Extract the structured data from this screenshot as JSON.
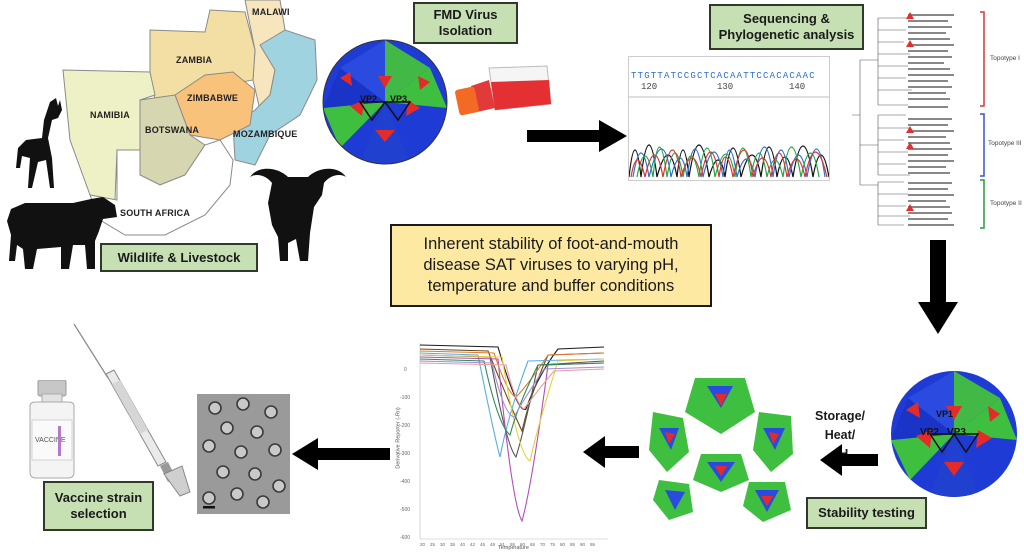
{
  "labels": {
    "wildlife": "Wildlife & Livestock",
    "isolation": "FMD Virus\nIsolation",
    "sequencing": "Sequencing &\nPhylogenetic analysis",
    "main": "Inherent stability of foot-and-mouth disease SAT viruses to varying pH, temperature and buffer conditions",
    "stability": "Stability testing",
    "vaccine": "Vaccine strain\nselection",
    "storage": "Storage/\nHeat/\npH"
  },
  "map": {
    "countries": [
      "MALAWI",
      "ZAMBIA",
      "ZIMBABWE",
      "NAMIBIA",
      "BOTSWANA",
      "MOZAMBIQUE",
      "SOUTH AFRICA"
    ]
  },
  "chromatogram": {
    "sequence": "TTGTTATCCGCTCACAATTCCACACAAC",
    "ticks": [
      "120",
      "130",
      "140"
    ]
  },
  "tree": {
    "topotypes": [
      "Topotype I",
      "Topotype III",
      "Topotype II"
    ]
  },
  "melt_chart": {
    "y_label": "Derivative Reporter (-Rn)",
    "x_label": "Temperature",
    "y_ticks": [
      "0",
      "-100",
      "-200",
      "-300",
      "-400",
      "-500",
      "-600"
    ],
    "x_ticks": [
      "20",
      "25",
      "30",
      "35",
      "40",
      "42",
      "45",
      "48",
      "51",
      "55",
      "60",
      "65",
      "70",
      "75",
      "80",
      "85",
      "90",
      "95"
    ]
  },
  "virus_labels": [
    "VP2",
    "VP3",
    "VP1"
  ],
  "vial_text": "VACCINE",
  "colors": {
    "box_green": "#c6e0b4",
    "main_yellow": "#fde9a2",
    "arrow": "#000000"
  }
}
